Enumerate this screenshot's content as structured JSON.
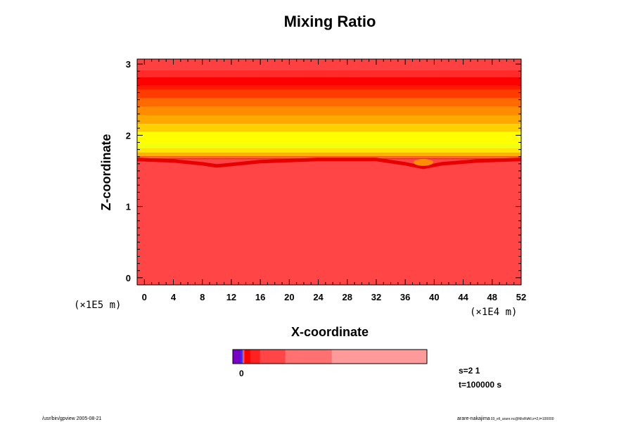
{
  "chart_data": {
    "type": "heatmap",
    "title": "Mixing Ratio",
    "xlabel": "X-coordinate",
    "ylabel": "Z-coordinate",
    "x_scale_label": "(×1E4 m)",
    "y_scale_label": "(×1E5 m)",
    "xlim": [
      -1,
      52
    ],
    "ylim": [
      -0.1,
      3.07
    ],
    "x_ticks": [
      0,
      4,
      8,
      12,
      16,
      20,
      24,
      28,
      32,
      36,
      40,
      44,
      48,
      52
    ],
    "x_tick_labels": [
      "0",
      "4",
      "8",
      "12",
      "16",
      "20",
      "24",
      "28",
      "32",
      "36",
      "40",
      "44",
      "48",
      "52"
    ],
    "y_ticks": [
      0,
      1,
      2,
      3
    ],
    "y_tick_labels": [
      "0",
      "1",
      "2",
      "3"
    ],
    "x_minor_step": 1,
    "y_minor_step": 0.1,
    "colors": {
      "base": "#ff4545",
      "bands": [
        {
          "z0": -0.1,
          "z1": 1.66,
          "color": "#ff4545"
        },
        {
          "z0": 1.66,
          "z1": 1.68,
          "color": "#ff1f1f"
        },
        {
          "z0": 1.68,
          "z1": 1.71,
          "color": "#ff6020"
        },
        {
          "z0": 1.71,
          "z1": 1.76,
          "color": "#ffb000"
        },
        {
          "z0": 1.76,
          "z1": 1.82,
          "color": "#ffe600"
        },
        {
          "z0": 1.82,
          "z1": 1.88,
          "color": "#f2ff10"
        },
        {
          "z0": 1.88,
          "z1": 2.05,
          "color": "#ffff00"
        },
        {
          "z0": 2.05,
          "z1": 2.16,
          "color": "#ffd000"
        },
        {
          "z0": 2.16,
          "z1": 2.28,
          "color": "#ffa800"
        },
        {
          "z0": 2.28,
          "z1": 2.4,
          "color": "#ff8c00"
        },
        {
          "z0": 2.4,
          "z1": 2.52,
          "color": "#ff6a00"
        },
        {
          "z0": 2.52,
          "z1": 2.64,
          "color": "#ff3c00"
        },
        {
          "z0": 2.64,
          "z1": 2.7,
          "color": "#ff1a00"
        },
        {
          "z0": 2.7,
          "z1": 2.82,
          "color": "#ff0000"
        },
        {
          "z0": 2.82,
          "z1": 2.92,
          "color": "#ff2a2a"
        },
        {
          "z0": 2.92,
          "z1": 3.07,
          "color": "#ff4040"
        }
      ],
      "interface_dip": [
        {
          "x": -1,
          "z": 1.66
        },
        {
          "x": 4,
          "z": 1.64
        },
        {
          "x": 8,
          "z": 1.6
        },
        {
          "x": 10,
          "z": 1.57
        },
        {
          "x": 12,
          "z": 1.59
        },
        {
          "x": 16,
          "z": 1.63
        },
        {
          "x": 24,
          "z": 1.66
        },
        {
          "x": 32,
          "z": 1.66
        },
        {
          "x": 36,
          "z": 1.6
        },
        {
          "x": 38.5,
          "z": 1.55
        },
        {
          "x": 41,
          "z": 1.6
        },
        {
          "x": 46,
          "z": 1.64
        },
        {
          "x": 52,
          "z": 1.66
        }
      ]
    },
    "colorbar": {
      "tick_label": "0",
      "segments": [
        {
          "w": 0.04,
          "color": "#7a00c8"
        },
        {
          "w": 0.01,
          "color": "#3030ff"
        },
        {
          "w": 0.01,
          "color": "#ff5050"
        },
        {
          "w": 0.03,
          "color": "#ff0000"
        },
        {
          "w": 0.05,
          "color": "#ff2020"
        },
        {
          "w": 0.13,
          "color": "#ff4545"
        },
        {
          "w": 0.24,
          "color": "#ff7070"
        },
        {
          "w": 0.49,
          "color": "#ff9a9a"
        }
      ]
    },
    "info": {
      "s_label": "s=2 1",
      "t_label": "t=100000 s"
    }
  },
  "footer": {
    "left": "/usr/bin/gpview 2005-08-21",
    "right_main": "arare-nakajima",
    "right_small": "03_ell_arare.nc@MixRtAll,x=2,t=100000"
  }
}
